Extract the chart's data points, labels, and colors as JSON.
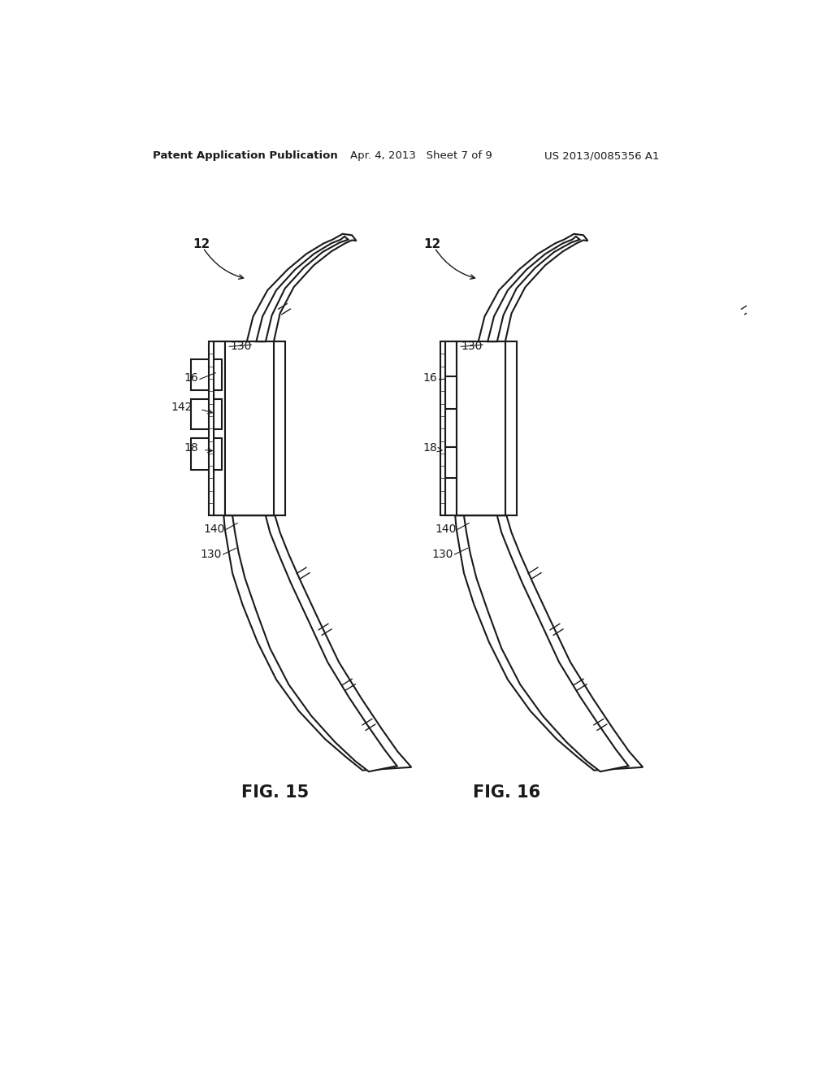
{
  "title_left": "Patent Application Publication",
  "title_center": "Apr. 4, 2013   Sheet 7 of 9",
  "title_right": "US 2013/0085356 A1",
  "fig15_label": "FIG. 15",
  "fig16_label": "FIG. 16",
  "background_color": "#ffffff",
  "line_color": "#1a1a1a",
  "label_fontsize": 10,
  "header_fontsize": 9.5,
  "fig_label_fontsize": 15
}
